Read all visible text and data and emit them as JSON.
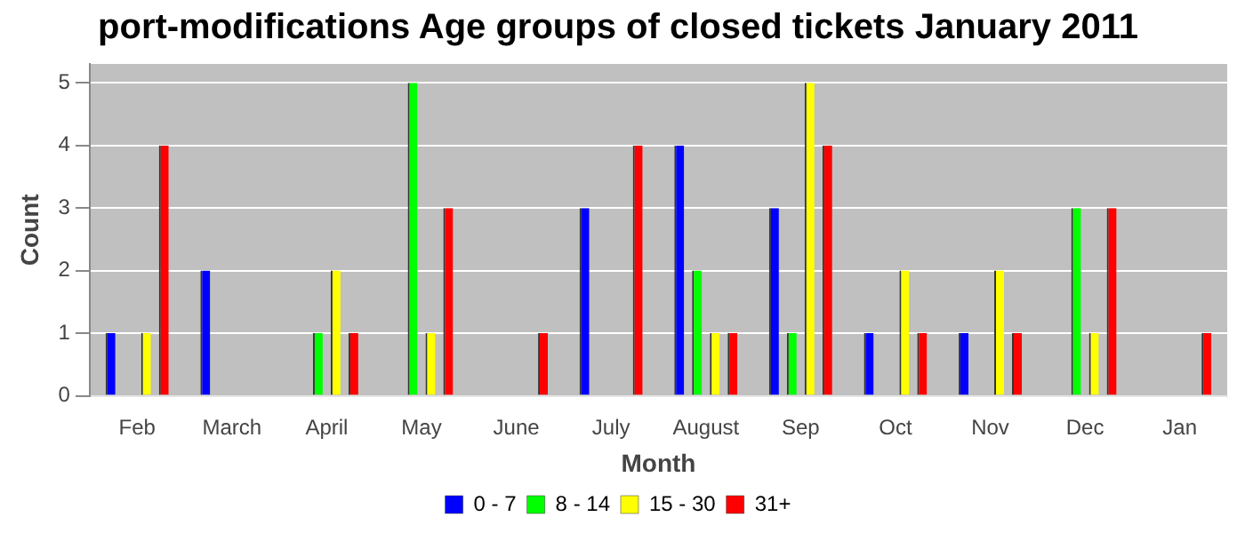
{
  "chart_data": {
    "type": "bar",
    "title": "port-modifications Age groups of closed tickets January 2011",
    "xlabel": "Month",
    "ylabel": "Count",
    "categories": [
      "Feb",
      "March",
      "April",
      "May",
      "June",
      "July",
      "August",
      "Sep",
      "Oct",
      "Nov",
      "Dec",
      "Jan"
    ],
    "series": [
      {
        "name": "0 - 7",
        "color": "#0000ff",
        "values": [
          1,
          2,
          0,
          0,
          0,
          3,
          4,
          3,
          1,
          1,
          0,
          0
        ]
      },
      {
        "name": "8 - 14",
        "color": "#00ff00",
        "values": [
          0,
          0,
          1,
          5,
          0,
          0,
          2,
          1,
          0,
          0,
          3,
          0
        ]
      },
      {
        "name": "15 - 30",
        "color": "#ffff00",
        "values": [
          1,
          0,
          2,
          1,
          0,
          0,
          1,
          5,
          2,
          2,
          1,
          0
        ]
      },
      {
        "name": "31+",
        "color": "#ff0000",
        "values": [
          4,
          0,
          1,
          3,
          1,
          4,
          1,
          4,
          1,
          1,
          3,
          1
        ]
      }
    ],
    "ylim": [
      0,
      5.3
    ],
    "yticks": [
      0,
      1,
      2,
      3,
      4,
      5
    ],
    "grid": "y",
    "legend": "bottom"
  }
}
